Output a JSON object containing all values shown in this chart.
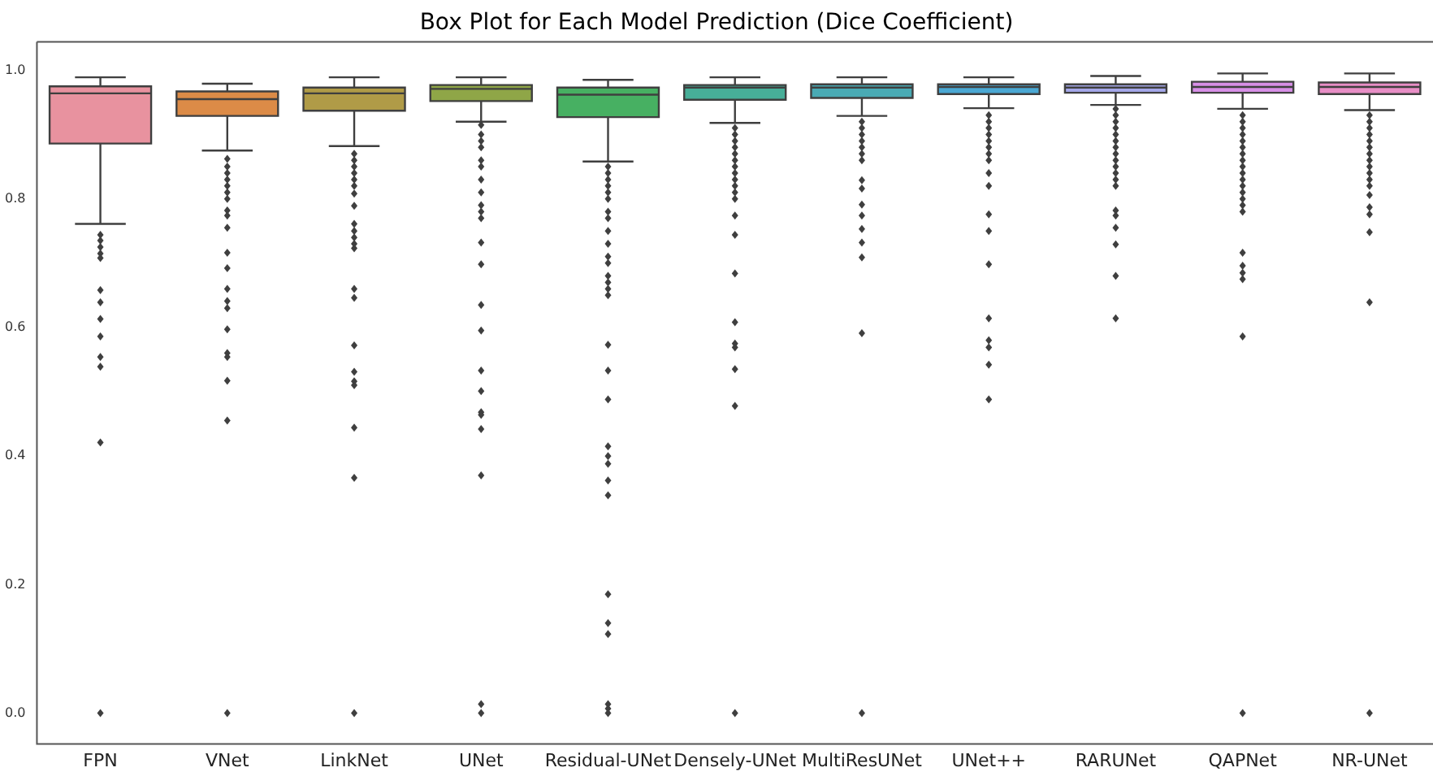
{
  "chart_data": {
    "type": "box",
    "title": "Box Plot for Each Model Prediction (Dice Coefficient)",
    "categories": [
      "FPN",
      "VNet",
      "LinkNet",
      "UNet",
      "Residual-UNet",
      "Densely-UNet",
      "MultiResUNet",
      "UNet++",
      "RARUNet",
      "QAPNet",
      "NR-UNet"
    ],
    "colors": [
      "#e8929f",
      "#dc8b47",
      "#b09b47",
      "#8fa647",
      "#47b062",
      "#47ae98",
      "#49aab4",
      "#4aa8d4",
      "#a4a7e8",
      "#d78fe6",
      "#e88ec6"
    ],
    "boxes": [
      {
        "low": 0.761,
        "q1": 0.886,
        "median": 0.964,
        "q3": 0.975,
        "high": 0.989,
        "outliers": [
          0.744,
          0.735,
          0.725,
          0.715,
          0.708,
          0.658,
          0.639,
          0.613,
          0.586,
          0.554,
          0.539,
          0.421,
          0
        ]
      },
      {
        "low": 0.875,
        "q1": 0.929,
        "median": 0.955,
        "q3": 0.967,
        "high": 0.979,
        "outliers": [
          0.862,
          0.85,
          0.84,
          0.83,
          0.82,
          0.81,
          0.8,
          0.782,
          0.774,
          0.755,
          0.716,
          0.692,
          0.66,
          0.641,
          0.63,
          0.597,
          0.56,
          0.554,
          0.517,
          0.455,
          0
        ]
      },
      {
        "low": 0.882,
        "q1": 0.937,
        "median": 0.964,
        "q3": 0.973,
        "high": 0.989,
        "outliers": [
          0.87,
          0.86,
          0.85,
          0.84,
          0.83,
          0.82,
          0.808,
          0.789,
          0.761,
          0.75,
          0.74,
          0.73,
          0.723,
          0.66,
          0.646,
          0.572,
          0.531,
          0.516,
          0.51,
          0.444,
          0.366,
          0
        ]
      },
      {
        "low": 0.92,
        "q1": 0.952,
        "median": 0.971,
        "q3": 0.977,
        "high": 0.989,
        "outliers": [
          0.915,
          0.9,
          0.89,
          0.88,
          0.86,
          0.85,
          0.83,
          0.81,
          0.79,
          0.78,
          0.77,
          0.732,
          0.698,
          0.635,
          0.595,
          0.533,
          0.501,
          0.468,
          0.464,
          0.442,
          0.37,
          0.014,
          0
        ]
      },
      {
        "low": 0.858,
        "q1": 0.927,
        "median": 0.962,
        "q3": 0.973,
        "high": 0.985,
        "outliers": [
          0.85,
          0.84,
          0.83,
          0.82,
          0.81,
          0.8,
          0.78,
          0.77,
          0.75,
          0.73,
          0.71,
          0.7,
          0.68,
          0.67,
          0.66,
          0.65,
          0.573,
          0.533,
          0.488,
          0.415,
          0.4,
          0.388,
          0.362,
          0.339,
          0.185,
          0.14,
          0.123,
          0.014,
          0.007,
          0
        ]
      },
      {
        "low": 0.918,
        "q1": 0.954,
        "median": 0.973,
        "q3": 0.977,
        "high": 0.989,
        "outliers": [
          0.91,
          0.9,
          0.89,
          0.88,
          0.87,
          0.86,
          0.85,
          0.84,
          0.83,
          0.82,
          0.81,
          0.8,
          0.774,
          0.744,
          0.684,
          0.608,
          0.575,
          0.569,
          0.535,
          0.478,
          0
        ]
      },
      {
        "low": 0.929,
        "q1": 0.957,
        "median": 0.973,
        "q3": 0.978,
        "high": 0.989,
        "outliers": [
          0.92,
          0.91,
          0.9,
          0.89,
          0.88,
          0.87,
          0.86,
          0.829,
          0.816,
          0.791,
          0.774,
          0.753,
          0.732,
          0.709,
          0.591,
          0
        ]
      },
      {
        "low": 0.941,
        "q1": 0.963,
        "median": 0.974,
        "q3": 0.978,
        "high": 0.989,
        "outliers": [
          0.93,
          0.92,
          0.91,
          0.9,
          0.89,
          0.88,
          0.87,
          0.86,
          0.84,
          0.82,
          0.776,
          0.75,
          0.698,
          0.614,
          0.58,
          0.569,
          0.542,
          0.488
        ]
      },
      {
        "low": 0.946,
        "q1": 0.965,
        "median": 0.973,
        "q3": 0.978,
        "high": 0.991,
        "outliers": [
          0.94,
          0.93,
          0.92,
          0.91,
          0.9,
          0.89,
          0.88,
          0.87,
          0.86,
          0.85,
          0.84,
          0.83,
          0.82,
          0.782,
          0.774,
          0.755,
          0.729,
          0.68,
          0.614
        ]
      },
      {
        "low": 0.94,
        "q1": 0.965,
        "median": 0.974,
        "q3": 0.982,
        "high": 0.995,
        "outliers": [
          0.93,
          0.92,
          0.91,
          0.9,
          0.89,
          0.88,
          0.87,
          0.86,
          0.85,
          0.84,
          0.83,
          0.82,
          0.81,
          0.8,
          0.79,
          0.78,
          0.716,
          0.696,
          0.685,
          0.675,
          0.586,
          0
        ]
      },
      {
        "low": 0.938,
        "q1": 0.963,
        "median": 0.974,
        "q3": 0.981,
        "high": 0.995,
        "outliers": [
          0.93,
          0.92,
          0.91,
          0.9,
          0.89,
          0.88,
          0.87,
          0.86,
          0.85,
          0.84,
          0.83,
          0.82,
          0.806,
          0.787,
          0.776,
          0.748,
          0.639,
          0
        ]
      }
    ],
    "ylim": [
      -0.048,
      1.044
    ],
    "yticks": [
      {
        "value": 0,
        "label": "0.0"
      },
      {
        "value": 0.2,
        "label": "0.2"
      },
      {
        "value": 0.4,
        "label": "0.4"
      },
      {
        "value": 0.6,
        "label": "0.6"
      },
      {
        "value": 0.8,
        "label": "0.8"
      },
      {
        "value": 1,
        "label": "1.0"
      }
    ],
    "grid": false,
    "legend": false
  }
}
